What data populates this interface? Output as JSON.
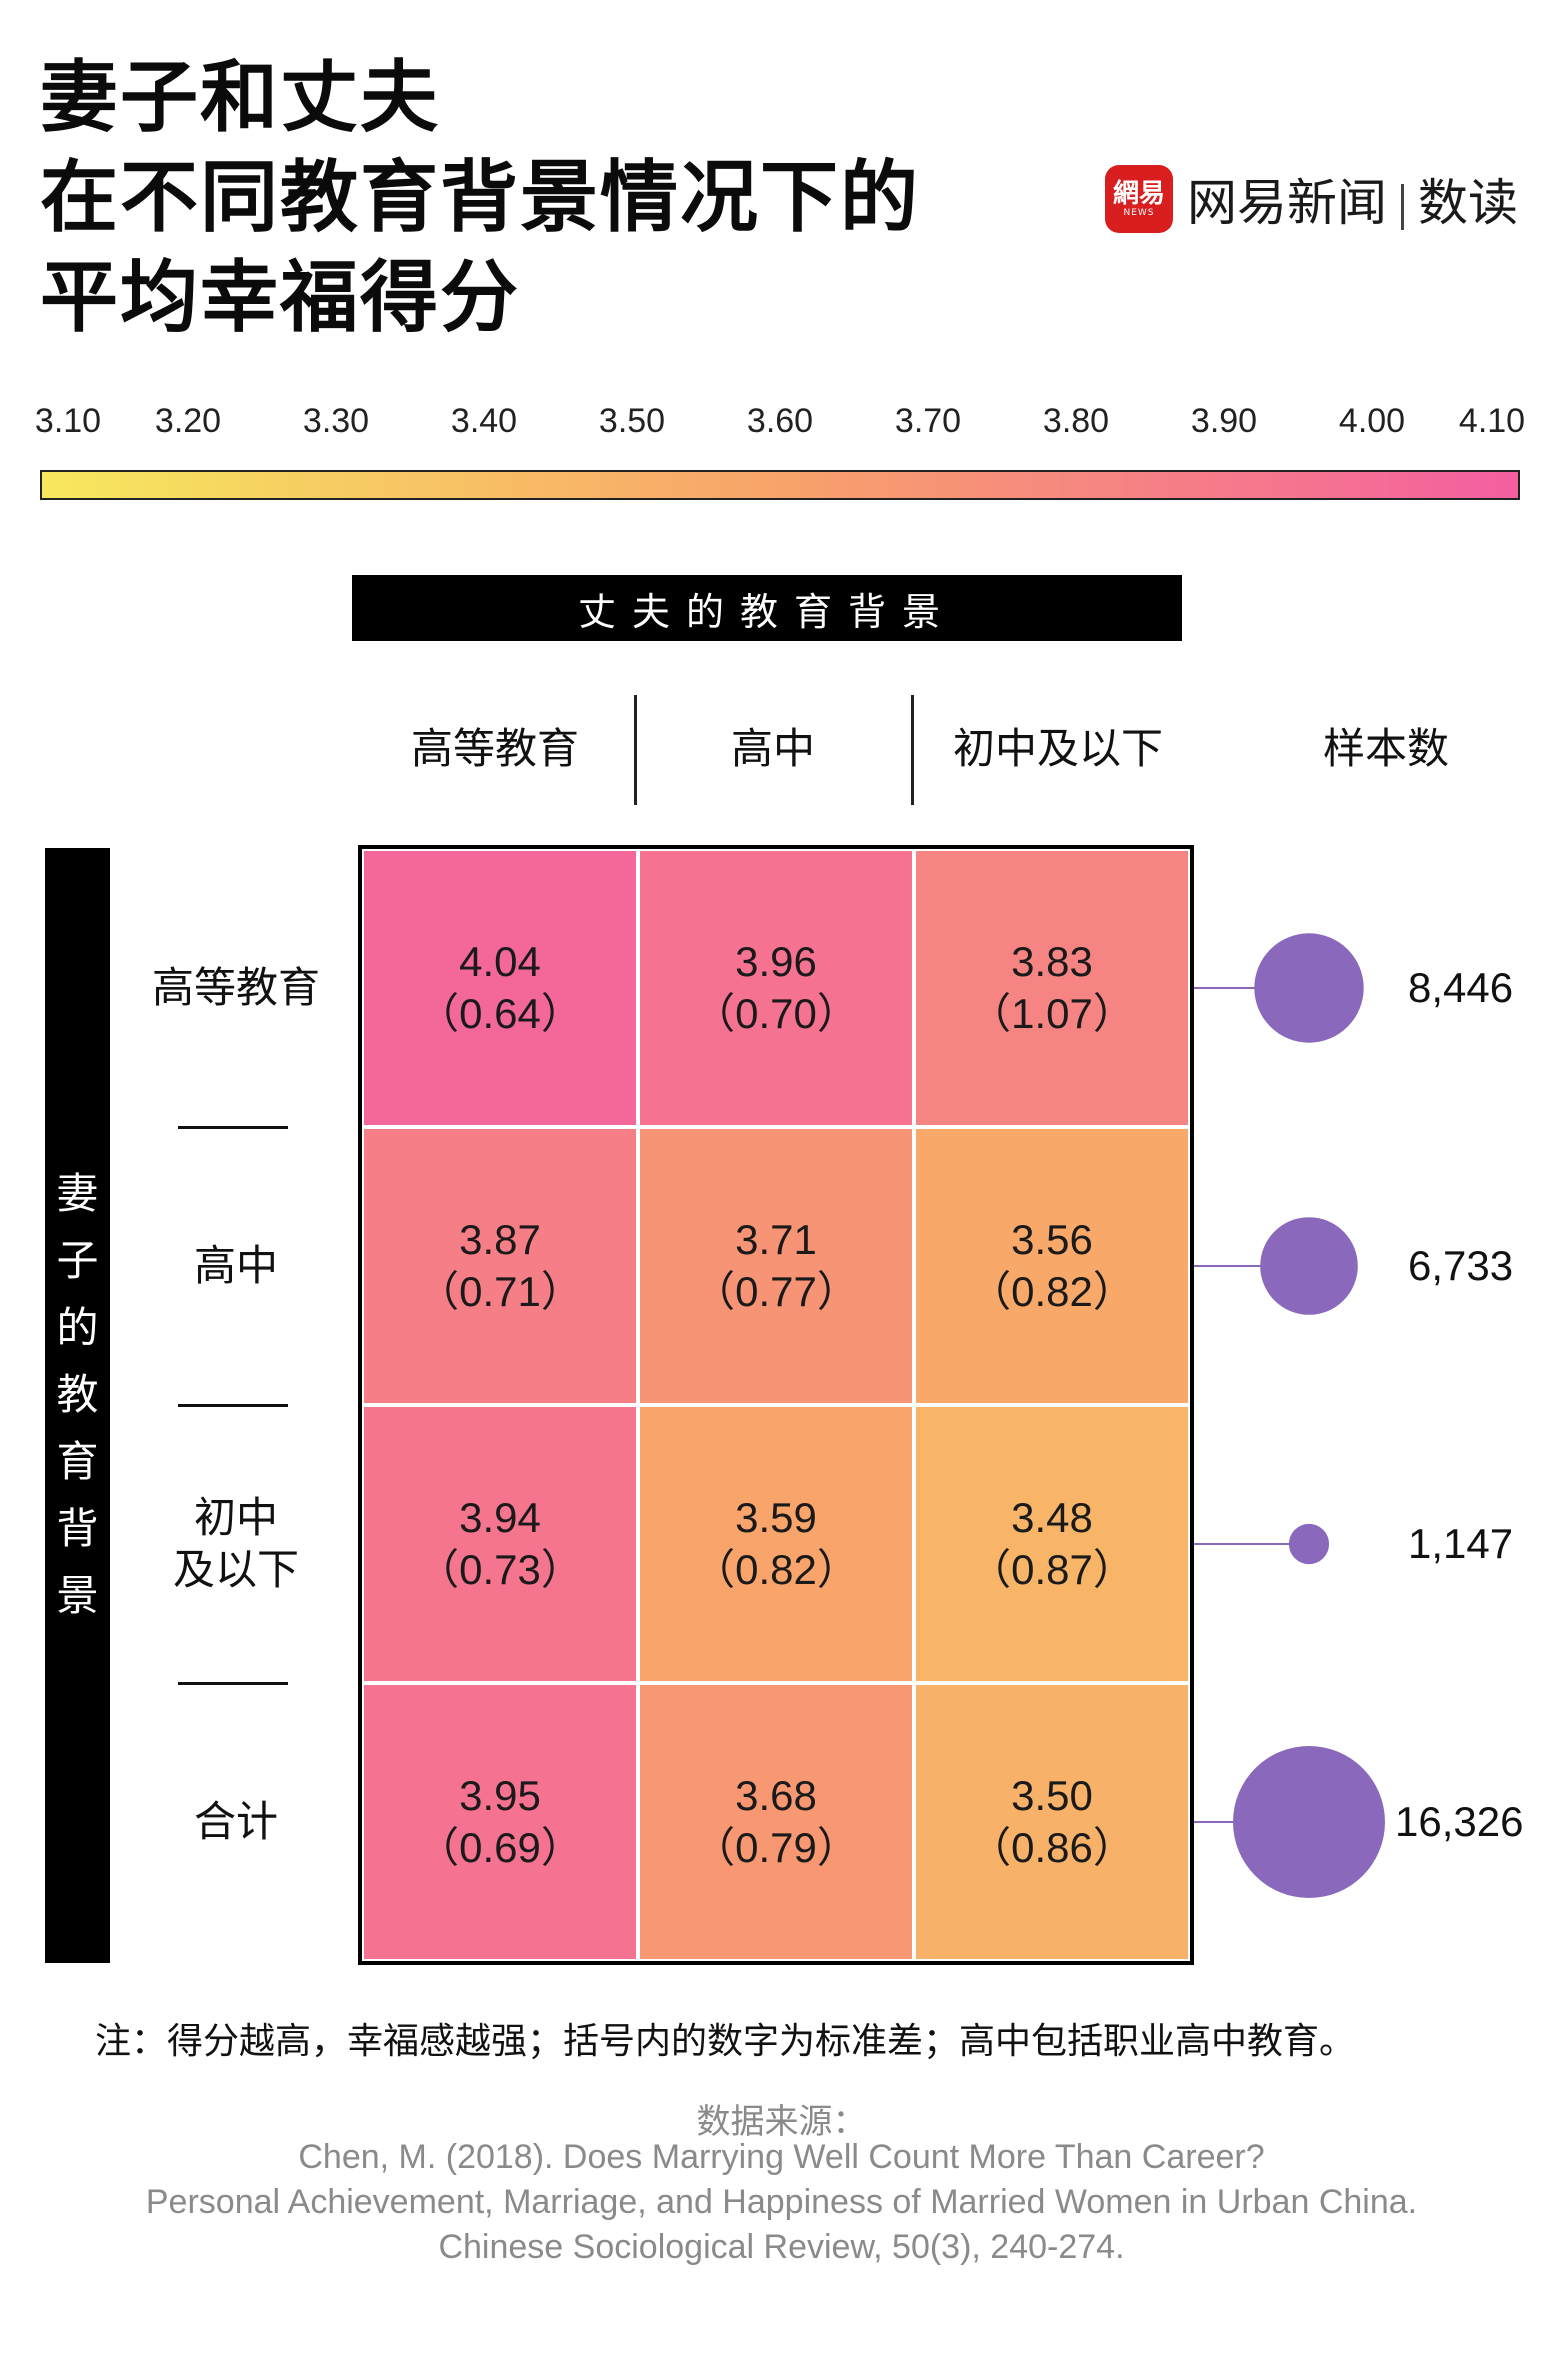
{
  "title": {
    "line1": "妻子和丈夫",
    "line2": "在不同教育背景情况下的",
    "line3": "平均幸福得分"
  },
  "brand": {
    "badge_main": "網易",
    "badge_sub": "NEWS",
    "name": "网易新闻",
    "section": "数读"
  },
  "colorbar": {
    "ticks": [
      "3.10",
      "3.20",
      "3.30",
      "3.40",
      "3.50",
      "3.60",
      "3.70",
      "3.80",
      "3.90",
      "4.00",
      "4.10"
    ],
    "min": 3.1,
    "max": 4.1,
    "low_color": "#f7e85e",
    "mid_color": "#f8a36a",
    "high_color": "#f45fa0"
  },
  "banner": "丈夫的教育背景",
  "side_label": [
    "妻",
    "子",
    "的",
    "教",
    "育",
    "背",
    "景"
  ],
  "chart_data": {
    "type": "heatmap",
    "x_axis_title": "丈夫的教育背景",
    "y_axis_title": "妻子的教育背景",
    "columns": [
      "高等教育",
      "高中",
      "初中及以下"
    ],
    "rows": [
      "高等教育",
      "高中",
      "初中\n及以下",
      "合计"
    ],
    "values": [
      [
        4.04,
        3.96,
        3.83
      ],
      [
        3.87,
        3.71,
        3.56
      ],
      [
        3.94,
        3.59,
        3.48
      ],
      [
        3.95,
        3.68,
        3.5
      ]
    ],
    "value_labels": [
      [
        "4.04",
        "3.96",
        "3.83"
      ],
      [
        "3.87",
        "3.71",
        "3.56"
      ],
      [
        "3.94",
        "3.59",
        "3.48"
      ],
      [
        "3.95",
        "3.68",
        "3.50"
      ]
    ],
    "sd_labels": [
      [
        "（0.64）",
        "（0.70）",
        "（1.07）"
      ],
      [
        "（0.71）",
        "（0.77）",
        "（0.82）"
      ],
      [
        "（0.73）",
        "（0.82）",
        "（0.87）"
      ],
      [
        "（0.69）",
        "（0.79）",
        "（0.86）"
      ]
    ],
    "sample_header": "样本数",
    "sample_sizes": [
      8446,
      6733,
      1147,
      16326
    ],
    "sample_labels": [
      "8,446",
      "6,733",
      "1,147",
      "16,326"
    ],
    "bubble_color": "#8a69bd"
  },
  "note": "注：得分越高，幸福感越强；括号内的数字为标准差；高中包括职业高中教育。",
  "source": {
    "label": "数据来源：",
    "line1": "Chen, M. (2018). Does Marrying Well Count More Than Career?",
    "line2": "Personal Achievement, Marriage, and Happiness of Married Women in Urban China.",
    "line3": "Chinese Sociological Review, 50(3), 240-274."
  }
}
